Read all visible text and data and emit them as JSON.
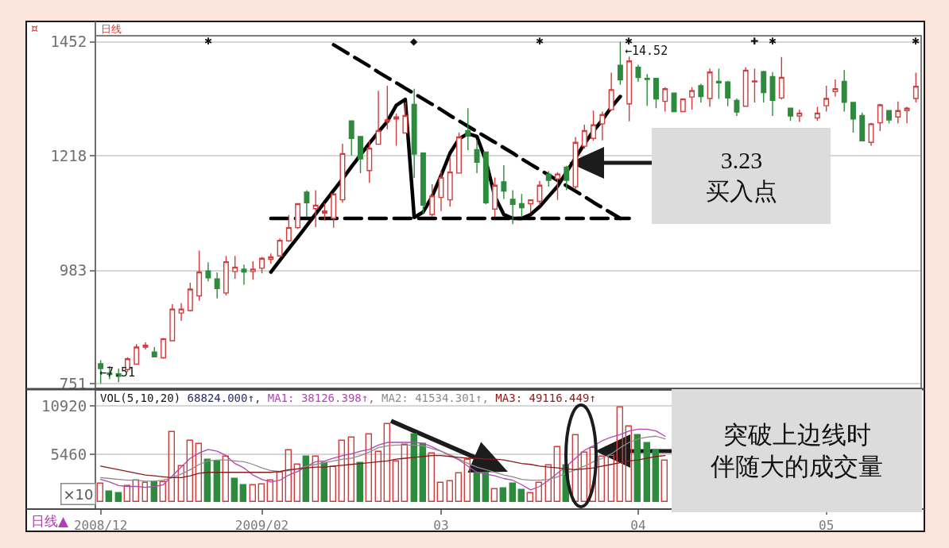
{
  "chart_data": [
    {
      "type": "candlestick",
      "title": "日线",
      "ylim": [
        743,
        1463
      ],
      "yticks": [
        751,
        983,
        1218,
        1452
      ],
      "grid": "y",
      "tick_labels": "y",
      "categories": [
        "2008/12",
        null,
        null,
        null,
        null,
        null,
        null,
        null,
        null,
        null,
        null,
        null,
        null,
        null,
        null,
        null,
        null,
        null,
        "2009/02",
        null,
        null,
        null,
        null,
        null,
        null,
        null,
        null,
        null,
        null,
        null,
        null,
        null,
        null,
        null,
        null,
        null,
        null,
        null,
        "03",
        null,
        null,
        null,
        null,
        null,
        null,
        null,
        null,
        null,
        null,
        null,
        null,
        null,
        null,
        null,
        null,
        null,
        null,
        null,
        null,
        null,
        "04",
        null,
        null,
        null,
        null,
        null,
        null,
        null,
        null,
        null,
        null,
        null,
        null,
        null,
        null,
        null,
        null,
        null,
        null,
        null,
        null,
        "05",
        null,
        null,
        null,
        null,
        null,
        null,
        null,
        null,
        null,
        null
      ],
      "series": [
        {
          "type": "line",
          "color": "#000000",
          "line_style": "solid",
          "values": [
            null,
            null,
            null,
            null,
            null,
            null,
            null,
            null,
            null,
            null,
            null,
            null,
            null,
            null,
            null,
            null,
            null,
            null,
            null,
            980,
            1004,
            1028,
            1051,
            1075,
            1099,
            1123,
            1147,
            1171,
            1196,
            1220,
            1244,
            1267,
            1289,
            1322,
            1334,
            1092,
            1103,
            1135,
            1178,
            1224,
            1253,
            1264,
            1258,
            1208,
            1135,
            1098,
            1090,
            1090,
            1098,
            1114,
            1135,
            1156,
            1185,
            1214,
            1243,
            1269,
            1292,
            1318,
            1340,
            null,
            null,
            null,
            null,
            null,
            null,
            null,
            null,
            null,
            null,
            null,
            null,
            null,
            null,
            null,
            null,
            null,
            null,
            null,
            null,
            null,
            null,
            null,
            null,
            null,
            null,
            null,
            null,
            null,
            null,
            null,
            null,
            null
          ]
        },
        {
          "type": "line",
          "color": "#000000",
          "line_style": "dashed",
          "values": [
            null,
            null,
            null,
            null,
            null,
            null,
            null,
            null,
            null,
            null,
            null,
            null,
            null,
            null,
            null,
            null,
            null,
            null,
            null,
            1090,
            1090,
            1090,
            1090,
            1090,
            1090,
            1090,
            1090,
            1090,
            1090,
            1090,
            1090,
            1090,
            1090,
            1090,
            1090,
            1090,
            1090,
            1090,
            1090,
            1090,
            1090,
            1090,
            1090,
            1090,
            1090,
            1090,
            1090,
            1090,
            1090,
            1090,
            1090,
            1090,
            1090,
            1090,
            1090,
            1090,
            1090,
            1090,
            1090,
            1090,
            null,
            null,
            null,
            null,
            null,
            null,
            null,
            null,
            null,
            null,
            null,
            null,
            null,
            null,
            null,
            null,
            null,
            null,
            null,
            null,
            null,
            null,
            null,
            null,
            null,
            null,
            null,
            null,
            null,
            null,
            null,
            null
          ]
        },
        {
          "type": "line",
          "color": "#000000",
          "line_style": "dashed",
          "values": [
            null,
            null,
            null,
            null,
            null,
            null,
            null,
            null,
            null,
            null,
            null,
            null,
            null,
            null,
            null,
            null,
            null,
            null,
            null,
            null,
            null,
            null,
            null,
            null,
            null,
            null,
            1446,
            1435,
            1424,
            1413,
            1402,
            1390,
            1379,
            1368,
            1357,
            1346,
            1335,
            1324,
            1313,
            1301,
            1290,
            1279,
            1268,
            1257,
            1246,
            1235,
            1224,
            1212,
            1201,
            1190,
            1179,
            1168,
            1157,
            1146,
            1135,
            1123,
            1112,
            1101,
            1090,
            null,
            null,
            null,
            null,
            null,
            null,
            null,
            null,
            null,
            null,
            null,
            null,
            null,
            null,
            null,
            null,
            null,
            null,
            null,
            null,
            null,
            null,
            null,
            null,
            null,
            null,
            null,
            null,
            null,
            null,
            null,
            null,
            null
          ]
        },
        {
          "ohlc": [
            [
              792,
              799,
              751,
              782
            ],
            [
              773,
              787,
              760,
              770
            ],
            [
              771,
              782,
              754,
              766
            ],
            [
              780,
              805,
              775,
              802
            ],
            [
              791,
              832,
              790,
              826
            ],
            [
              826,
              836,
              821,
              830
            ],
            [
              816,
              826,
              806,
              806
            ],
            [
              804,
              845,
              802,
              843
            ],
            [
              839,
              914,
              839,
              904
            ],
            [
              896,
              916,
              880,
              904
            ],
            [
              901,
              958,
              899,
              945
            ],
            [
              931,
              1024,
              921,
              980
            ],
            [
              982,
              1000,
              961,
              968
            ],
            [
              966,
              979,
              926,
              946
            ],
            [
              937,
              1013,
              932,
              1001
            ],
            [
              981,
              1013,
              966,
              990
            ],
            [
              986,
              995,
              954,
              980
            ],
            [
              981,
              1002,
              964,
              986
            ],
            [
              988,
              1011,
              977,
              1008
            ],
            [
              1006,
              1018,
              997,
              1011
            ],
            [
              1013,
              1049,
              1012,
              1045
            ],
            [
              1044,
              1097,
              1042,
              1071
            ],
            [
              1071,
              1121,
              1068,
              1120
            ],
            [
              1144,
              1148,
              1093,
              1122
            ],
            [
              1110,
              1148,
              1072,
              1117
            ],
            [
              1101,
              1121,
              1086,
              1105
            ],
            [
              1090,
              1140,
              1071,
              1140
            ],
            [
              1128,
              1243,
              1122,
              1223
            ],
            [
              1290,
              1290,
              1219,
              1254
            ],
            [
              1258,
              1258,
              1183,
              1212
            ],
            [
              1188,
              1250,
              1163,
              1234
            ],
            [
              1242,
              1352,
              1242,
              1270
            ],
            [
              1289,
              1362,
              1273,
              1292
            ],
            [
              1294,
              1305,
              1239,
              1298
            ],
            [
              1265,
              1328,
              1265,
              1301
            ],
            [
              1324,
              1356,
              1173,
              1222
            ],
            [
              1224,
              1224,
              1098,
              1117
            ],
            [
              1098,
              1160,
              1093,
              1136
            ],
            [
              1133,
              1188,
              1105,
              1174
            ],
            [
              1128,
              1214,
              1114,
              1185
            ],
            [
              1183,
              1266,
              1183,
              1257
            ],
            [
              1270,
              1316,
              1230,
              1259
            ],
            [
              1231,
              1251,
              1183,
              1205
            ],
            [
              1226,
              1226,
              1119,
              1122
            ],
            [
              1109,
              1174,
              1093,
              1158
            ],
            [
              1165,
              1199,
              1130,
              1146
            ],
            [
              1129,
              1148,
              1078,
              1119
            ],
            [
              1120,
              1140,
              1093,
              1112
            ],
            [
              1120,
              1129,
              1103,
              1128
            ],
            [
              1125,
              1167,
              1117,
              1158
            ],
            [
              1181,
              1187,
              1155,
              1168
            ],
            [
              1171,
              1185,
              1128,
              1181
            ],
            [
              1195,
              1198,
              1148,
              1168
            ],
            [
              1155,
              1257,
              1149,
              1246
            ],
            [
              1238,
              1282,
              1233,
              1270
            ],
            [
              1254,
              1311,
              1249,
              1282
            ],
            [
              1284,
              1309,
              1250,
              1303
            ],
            [
              1313,
              1389,
              1311,
              1354
            ],
            [
              1404,
              1452,
              1364,
              1374
            ],
            [
              1325,
              1422,
              1289,
              1413
            ],
            [
              1400,
              1405,
              1370,
              1379
            ],
            [
              1377,
              1386,
              1321,
              1375
            ],
            [
              1377,
              1377,
              1316,
              1335
            ],
            [
              1330,
              1359,
              1309,
              1356
            ],
            [
              1347,
              1348,
              1308,
              1309
            ],
            [
              1309,
              1336,
              1308,
              1335
            ],
            [
              1339,
              1359,
              1313,
              1352
            ],
            [
              1362,
              1366,
              1328,
              1340
            ],
            [
              1336,
              1397,
              1319,
              1390
            ],
            [
              1371,
              1397,
              1335,
              1368
            ],
            [
              1370,
              1372,
              1320,
              1337
            ],
            [
              1332,
              1336,
              1300,
              1308
            ],
            [
              1320,
              1400,
              1319,
              1394
            ],
            [
              1370,
              1397,
              1328,
              1372
            ],
            [
              1391,
              1393,
              1328,
              1348
            ],
            [
              1381,
              1390,
              1300,
              1332
            ],
            [
              1337,
              1421,
              1334,
              1379
            ],
            [
              1316,
              1316,
              1290,
              1300
            ],
            [
              1300,
              1313,
              1288,
              1306
            ],
            null,
            [
              1296,
              1319,
              1290,
              1306
            ],
            [
              1321,
              1362,
              1309,
              1336
            ],
            [
              1350,
              1375,
              1340,
              1356
            ],
            [
              1371,
              1394,
              1309,
              1328
            ],
            [
              1328,
              1328,
              1266,
              1294
            ],
            [
              1301,
              1307,
              1249,
              1249
            ],
            [
              1246,
              1286,
              1239,
              1284
            ],
            [
              1286,
              1325,
              1269,
              1323
            ],
            [
              1311,
              1311,
              1285,
              1292
            ],
            [
              1298,
              1330,
              1285,
              1311
            ],
            [
              1311,
              1319,
              1285,
              1316
            ],
            [
              1336,
              1389,
              1328,
              1361
            ]
          ],
          "colors": [
            "#2e8b3e",
            "#2e8b3e",
            "#2e8b3e",
            "#d23c3c",
            "#d23c3c",
            "#d23c3c",
            "#2e8b3e",
            "#d23c3c",
            "#d23c3c",
            "#d23c3c",
            "#d23c3c",
            "#d23c3c",
            "#2e8b3e",
            "#2e8b3e",
            "#d23c3c",
            "#d23c3c",
            "#2e8b3e",
            "#d23c3c",
            "#d23c3c",
            "#d23c3c",
            "#d23c3c",
            "#d23c3c",
            "#d23c3c",
            "#2e8b3e",
            "#d23c3c",
            "#d23c3c",
            "#d23c3c",
            "#d23c3c",
            "#2e8b3e",
            "#2e8b3e",
            "#d23c3c",
            "#d23c3c",
            "#d23c3c",
            "#d23c3c",
            "#d23c3c",
            "#2e8b3e",
            "#2e8b3e",
            "#d23c3c",
            "#d23c3c",
            "#d23c3c",
            "#d23c3c",
            "#2e8b3e",
            "#2e8b3e",
            "#2e8b3e",
            "#d23c3c",
            "#2e8b3e",
            "#2e8b3e",
            "#2e8b3e",
            "#d23c3c",
            "#d23c3c",
            "#2e8b3e",
            "#d23c3c",
            "#2e8b3e",
            "#d23c3c",
            "#d23c3c",
            "#d23c3c",
            "#d23c3c",
            "#d23c3c",
            "#2e8b3e",
            "#d23c3c",
            "#2e8b3e",
            "#2e8b3e",
            "#2e8b3e",
            "#d23c3c",
            "#2e8b3e",
            "#d23c3c",
            "#d23c3c",
            "#2e8b3e",
            "#d23c3c",
            "#2e8b3e",
            "#2e8b3e",
            "#2e8b3e",
            "#d23c3c",
            "#d23c3c",
            "#2e8b3e",
            "#2e8b3e",
            "#d23c3c",
            "#2e8b3e",
            "#d23c3c",
            null,
            "#d23c3c",
            "#d23c3c",
            "#d23c3c",
            "#2e8b3e",
            "#2e8b3e",
            "#2e8b3e",
            "#d23c3c",
            "#d23c3c",
            "#2e8b3e",
            "#d23c3c",
            "#d23c3c",
            "#d23c3c"
          ]
        }
      ],
      "annotations": [
        "3.23\n买入点",
        {
          "text": "←7.51",
          "y": 751
        },
        "←14.52",
        "✱",
        "◆",
        "✱",
        "✱",
        "✚",
        "✱",
        "✱",
        "¤"
      ]
    },
    {
      "type": "bar",
      "title": "VOL(5,10,20)",
      "ylabel": "×10",
      "ylim": [
        -680,
        12660
      ],
      "yticks": [
        5460,
        10920
      ],
      "grid": "y",
      "categories": [
        "2008/12",
        null,
        null,
        null,
        null,
        null,
        null,
        null,
        null,
        null,
        null,
        null,
        null,
        null,
        null,
        null,
        null,
        null,
        "2009/02",
        null,
        null,
        null,
        null,
        null,
        null,
        null,
        null,
        null,
        null,
        null,
        null,
        null,
        null,
        null,
        null,
        null,
        null,
        null,
        "03",
        null,
        null,
        null,
        null,
        null,
        null,
        null,
        null,
        null,
        null,
        null,
        null,
        null,
        null,
        null,
        null,
        null,
        null,
        null,
        null,
        null,
        "04",
        null,
        null,
        null,
        null,
        null,
        null,
        null,
        null,
        null,
        null,
        null,
        null,
        null,
        null,
        null,
        null,
        null,
        null,
        null,
        null,
        "05",
        null,
        null,
        null,
        null,
        null,
        null,
        null,
        null,
        null,
        null
      ],
      "series": [
        {
          "name": "68824.000↑,",
          "values": [
            2100,
            1200,
            1000,
            1800,
            2500,
            2200,
            2300,
            2300,
            8000,
            4100,
            7000,
            6600,
            4800,
            4600,
            5200,
            2700,
            1900,
            1900,
            2000,
            2500,
            3400,
            5900,
            4300,
            5200,
            5200,
            4500,
            4000,
            7000,
            7300,
            4500,
            7700,
            5700,
            8900,
            4600,
            6500,
            7700,
            6600,
            5500,
            2200,
            2400,
            3300,
            4800,
            3300,
            3300,
            1500,
            1600,
            2100,
            1400,
            1000,
            2200,
            4200,
            6300,
            4200,
            7600,
            5600,
            6200,
            5200,
            5300,
            10800,
            8600,
            7600,
            6700,
            5900,
            4700,
            null,
            null,
            null,
            null,
            null,
            null,
            null,
            null,
            null,
            null,
            null,
            null,
            null,
            null,
            null,
            null,
            null,
            null,
            null,
            null,
            null,
            null,
            null,
            null,
            null,
            null,
            null,
            null
          ],
          "colors": [
            "#d23c3c",
            "#2e8b3e",
            "#2e8b3e",
            "#d23c3c",
            "#d23c3c",
            "#d23c3c",
            "#2e8b3e",
            "#d23c3c",
            "#d23c3c",
            "#d23c3c",
            "#d23c3c",
            "#d23c3c",
            "#2e8b3e",
            "#2e8b3e",
            "#d23c3c",
            "#2e8b3e",
            "#2e8b3e",
            "#d23c3c",
            "#d23c3c",
            "#d23c3c",
            "#d23c3c",
            "#d23c3c",
            "#d23c3c",
            "#2e8b3e",
            "#d23c3c",
            "#2e8b3e",
            "#d23c3c",
            "#d23c3c",
            "#d23c3c",
            "#2e8b3e",
            "#d23c3c",
            "#d23c3c",
            "#d23c3c",
            "#d23c3c",
            "#d23c3c",
            "#2e8b3e",
            "#2e8b3e",
            "#d23c3c",
            "#d23c3c",
            "#d23c3c",
            "#d23c3c",
            "#d23c3c",
            "#2e8b3e",
            "#2e8b3e",
            "#d23c3c",
            "#2e8b3e",
            "#2e8b3e",
            "#2e8b3e",
            "#d23c3c",
            "#d23c3c",
            "#d23c3c",
            "#d23c3c",
            "#2e8b3e",
            "#d23c3c",
            "#d23c3c",
            "#d23c3c",
            "#d23c3c",
            "#d23c3c",
            "#d23c3c",
            "#d23c3c",
            "#2e8b3e",
            "#2e8b3e",
            "#2e8b3e",
            "#d23c3c",
            null,
            null,
            null,
            null,
            null,
            null,
            null,
            null,
            null,
            null,
            null,
            null,
            null,
            null,
            null,
            null,
            null,
            null,
            null,
            null,
            null,
            null,
            null,
            null,
            null,
            null,
            null,
            null
          ]
        },
        {
          "type": "line",
          "name": "MA1: 38126.398↑,",
          "color": "#b048b0",
          "values": [
            2600,
            2300,
            1900,
            1800,
            1800,
            1700,
            1800,
            2000,
            3000,
            4000,
            5000,
            5600,
            6000,
            5800,
            5300,
            4400,
            3900,
            3100,
            2600,
            2300,
            2500,
            3100,
            3500,
            4100,
            4600,
            4700,
            5000,
            5300,
            5500,
            5800,
            6000,
            6500,
            6800,
            6800,
            6800,
            6800,
            6700,
            6300,
            5800,
            5300,
            4800,
            4100,
            3400,
            3200,
            3000,
            2700,
            2500,
            2000,
            1400,
            1800,
            2500,
            3300,
            4100,
            5000,
            5900,
            6400,
            7000,
            7400,
            7700,
            8100,
            8300,
            8300,
            8100,
            7500,
            null,
            null,
            null,
            null,
            null,
            null,
            null,
            null,
            null,
            null,
            null,
            null,
            null,
            null,
            null,
            null,
            null,
            null,
            null,
            null,
            null,
            null,
            null,
            null,
            null,
            null,
            null,
            null
          ]
        },
        {
          "type": "line",
          "name": "MA2: 41534.301↑,",
          "color": "#8c8c8c",
          "values": [
            2800,
            2700,
            2600,
            2500,
            2500,
            2400,
            2400,
            2500,
            2800,
            3200,
            3700,
            4300,
            4700,
            4800,
            4800,
            4700,
            4600,
            4300,
            3900,
            3600,
            3500,
            3600,
            3800,
            4100,
            4300,
            4500,
            4700,
            4900,
            5000,
            5300,
            5700,
            6200,
            6400,
            6500,
            6500,
            6500,
            6400,
            6100,
            5800,
            5400,
            4900,
            4400,
            4000,
            3700,
            3400,
            3100,
            2900,
            2600,
            2500,
            2500,
            2600,
            2900,
            3300,
            3700,
            4100,
            4600,
            5000,
            5500,
            6200,
            6800,
            7200,
            7400,
            7500,
            7200,
            null,
            null,
            null,
            null,
            null,
            null,
            null,
            null,
            null,
            null,
            null,
            null,
            null,
            null,
            null,
            null,
            null,
            null,
            null,
            null,
            null,
            null,
            null,
            null,
            null,
            null,
            null,
            null
          ]
        },
        {
          "type": "line",
          "name": "MA3: 49116.449↑",
          "color": "#8b1a1a",
          "values": [
            4100,
            3900,
            3700,
            3500,
            3300,
            3100,
            3000,
            2900,
            2800,
            2800,
            3000,
            3300,
            3400,
            3400,
            3400,
            3400,
            3400,
            3400,
            3400,
            3400,
            3500,
            3700,
            3800,
            3900,
            4000,
            4000,
            4100,
            4200,
            4300,
            4400,
            4500,
            4600,
            4700,
            4900,
            5000,
            5100,
            5200,
            5300,
            5300,
            5200,
            5100,
            5000,
            5000,
            4900,
            4900,
            4800,
            4600,
            4400,
            4300,
            4100,
            4000,
            3900,
            3800,
            3700,
            3800,
            3900,
            4100,
            4300,
            4500,
            4700,
            4800,
            5000,
            5200,
            5300,
            null,
            null,
            null,
            null,
            null,
            null,
            null,
            null,
            null,
            null,
            null,
            null,
            null,
            null,
            null,
            null,
            null,
            null,
            null,
            null,
            null,
            null,
            null,
            null,
            null,
            null,
            null,
            null
          ]
        }
      ],
      "annotations": [
        "突破上边线时伴随大的成交量",
        "日线▲"
      ]
    }
  ]
}
